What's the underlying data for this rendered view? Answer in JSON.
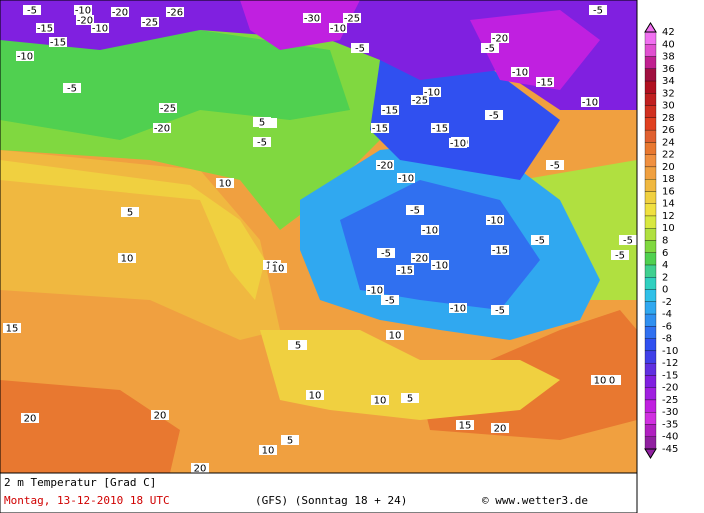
{
  "title": "2 m Temperatur [Grad C]",
  "run_time": "Montag, 13-12-2010  18 UTC",
  "model_info": "(GFS)  (Sonntag 18 + 24)",
  "copyright": "© www.wetter3.de",
  "legend": {
    "levels": [
      42,
      40,
      38,
      36,
      34,
      32,
      30,
      28,
      26,
      24,
      22,
      20,
      18,
      16,
      14,
      12,
      10,
      8,
      6,
      4,
      2,
      0,
      -2,
      -4,
      -6,
      -8,
      -10,
      -12,
      -15,
      -20,
      -25,
      -30,
      -35,
      -40,
      -45
    ],
    "colors": [
      "#f070f0",
      "#e050d0",
      "#c02090",
      "#a01040",
      "#b01020",
      "#c02020",
      "#d03020",
      "#e04020",
      "#e06030",
      "#e87830",
      "#f09040",
      "#f0a040",
      "#f0b840",
      "#f0d040",
      "#f0e040",
      "#d8e840",
      "#b0e040",
      "#80d840",
      "#50d050",
      "#40d090",
      "#30d0c0",
      "#30c0e8",
      "#30a8f0",
      "#3090f0",
      "#3070f0",
      "#3050f0",
      "#4040e8",
      "#6030e0",
      "#8020e0",
      "#a020e0",
      "#c020e0",
      "#d030e0",
      "#b020c0",
      "#9020a0"
    ]
  },
  "map_labels": [
    -5,
    -10,
    -20,
    -20,
    -25,
    -26,
    -10,
    -15,
    -10,
    -5,
    -25,
    -20,
    -15,
    -30,
    -25,
    -10,
    -5,
    -15,
    -15,
    -10,
    -5,
    -10,
    -25,
    -20,
    -15,
    -10,
    -5,
    -5,
    5,
    5,
    10,
    10,
    10,
    10,
    15,
    20,
    20,
    -5,
    -10,
    -20,
    -15,
    -10,
    -5,
    -10,
    -10,
    -5,
    -10,
    -20,
    -15,
    -10,
    -5,
    -5,
    -10,
    5,
    10,
    10,
    10,
    15,
    20,
    5,
    5,
    10,
    0,
    -5,
    -5,
    10,
    15,
    20,
    5,
    10,
    -10,
    -5,
    -15,
    -5
  ]
}
